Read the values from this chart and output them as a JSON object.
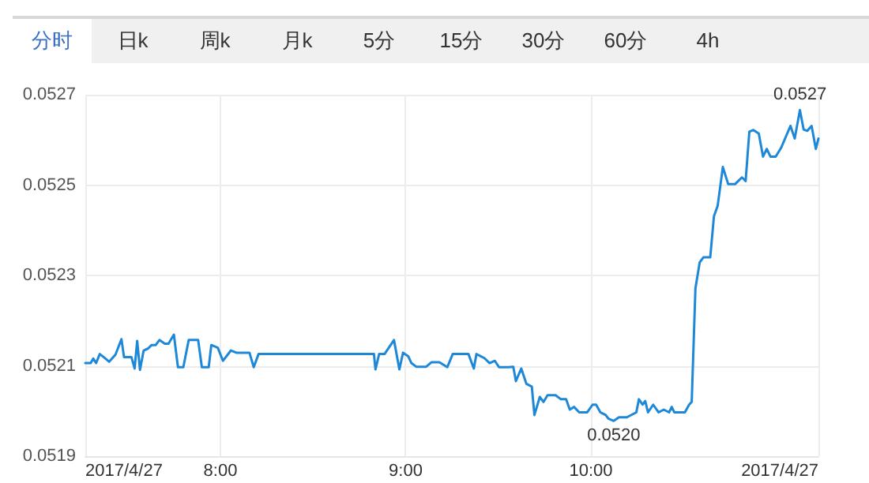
{
  "chart_data": {
    "type": "line",
    "annotations": [
      "分时",
      "日k",
      "周k",
      "月k",
      "5分",
      "15分",
      "30分",
      "60分",
      "4h",
      {
        "text": "0.0527",
        "x": 11.128,
        "y": 0.052666
      },
      {
        "text": "0.0520",
        "x": 10.123,
        "y": 0.051978
      }
    ],
    "xlim": [
      7.271,
      11.228
    ],
    "xticks": [
      {
        "value": 7.271,
        "label": "2017/4/27"
      },
      {
        "value": 8,
        "label": "8:00"
      },
      {
        "value": 9,
        "label": "9:00"
      },
      {
        "value": 10,
        "label": "10:00"
      },
      {
        "value": 11.228,
        "label": "2017/4/27"
      }
    ],
    "ylim": [
      0.0519,
      0.0527
    ],
    "yticks": [
      0.0519,
      0.0521,
      0.0523,
      0.0525,
      0.0527
    ],
    "grid": true,
    "marker": "none",
    "line_style": "solid",
    "series": [
      {
        "color": "#1e88d8",
        "x": [
          7.271,
          7.3,
          7.314,
          7.329,
          7.349,
          7.371,
          7.4,
          7.434,
          7.466,
          7.48,
          7.52,
          7.537,
          7.551,
          7.566,
          7.586,
          7.609,
          7.629,
          7.651,
          7.671,
          7.7,
          7.72,
          7.749,
          7.771,
          7.8,
          7.829,
          7.88,
          7.9,
          7.937,
          7.951,
          7.986,
          8.014,
          8.057,
          8.086,
          8.157,
          8.18,
          8.206,
          8.829,
          8.837,
          8.857,
          8.886,
          8.937,
          8.966,
          8.986,
          9.014,
          9.031,
          9.057,
          9.086,
          9.111,
          9.14,
          9.182,
          9.225,
          9.254,
          9.339,
          9.368,
          9.382,
          9.425,
          9.453,
          9.481,
          9.504,
          9.553,
          9.581,
          9.595,
          9.624,
          9.652,
          9.681,
          9.695,
          9.724,
          9.744,
          9.766,
          9.809,
          9.838,
          9.866,
          9.886,
          9.909,
          9.937,
          9.98,
          10.009,
          10.028,
          10.051,
          10.08,
          10.094,
          10.123,
          10.151,
          10.194,
          10.245,
          10.259,
          10.279,
          10.293,
          10.308,
          10.336,
          10.365,
          10.393,
          10.422,
          10.436,
          10.45,
          10.507,
          10.53,
          10.544,
          10.564,
          10.587,
          10.607,
          10.644,
          10.664,
          10.684,
          10.712,
          10.741,
          10.778,
          10.815,
          10.835,
          10.855,
          10.877,
          10.906,
          10.929,
          10.949,
          10.969,
          10.997,
          11.026,
          11.077,
          11.1,
          11.128,
          11.148,
          11.168,
          11.191,
          11.214,
          11.228
        ],
        "values": [
          0.052106,
          0.052106,
          0.052116,
          0.052106,
          0.052126,
          0.052119,
          0.052109,
          0.052125,
          0.052159,
          0.052119,
          0.052119,
          0.052094,
          0.052155,
          0.052091,
          0.052134,
          0.052138,
          0.052146,
          0.052146,
          0.052157,
          0.052149,
          0.052149,
          0.052169,
          0.052097,
          0.052097,
          0.052157,
          0.052157,
          0.052097,
          0.052097,
          0.052146,
          0.05214,
          0.052111,
          0.052134,
          0.052129,
          0.052129,
          0.052097,
          0.052126,
          0.052126,
          0.052092,
          0.052126,
          0.052126,
          0.052157,
          0.052092,
          0.052129,
          0.052121,
          0.052106,
          0.052098,
          0.052098,
          0.052098,
          0.052108,
          0.052108,
          0.052097,
          0.052126,
          0.052126,
          0.052094,
          0.052126,
          0.052117,
          0.052106,
          0.052111,
          0.052097,
          0.052097,
          0.052098,
          0.052066,
          0.052094,
          0.05206,
          0.052054,
          0.051991,
          0.052031,
          0.05202,
          0.052035,
          0.052035,
          0.052026,
          0.052026,
          0.052003,
          0.052009,
          0.051997,
          0.051997,
          0.052014,
          0.052014,
          0.051997,
          0.051991,
          0.051983,
          0.051978,
          0.051986,
          0.051986,
          0.051997,
          0.052026,
          0.052014,
          0.052022,
          0.051997,
          0.052014,
          0.051997,
          0.052003,
          0.051997,
          0.052009,
          0.051997,
          0.051997,
          0.052014,
          0.05202,
          0.052271,
          0.052329,
          0.05234,
          0.05234,
          0.052431,
          0.052454,
          0.05254,
          0.052502,
          0.052502,
          0.052517,
          0.052509,
          0.052618,
          0.052622,
          0.052614,
          0.052563,
          0.05258,
          0.052563,
          0.052563,
          0.052582,
          0.052631,
          0.052603,
          0.052666,
          0.052623,
          0.05262,
          0.052631,
          0.05258,
          0.052603
        ]
      }
    ]
  }
}
